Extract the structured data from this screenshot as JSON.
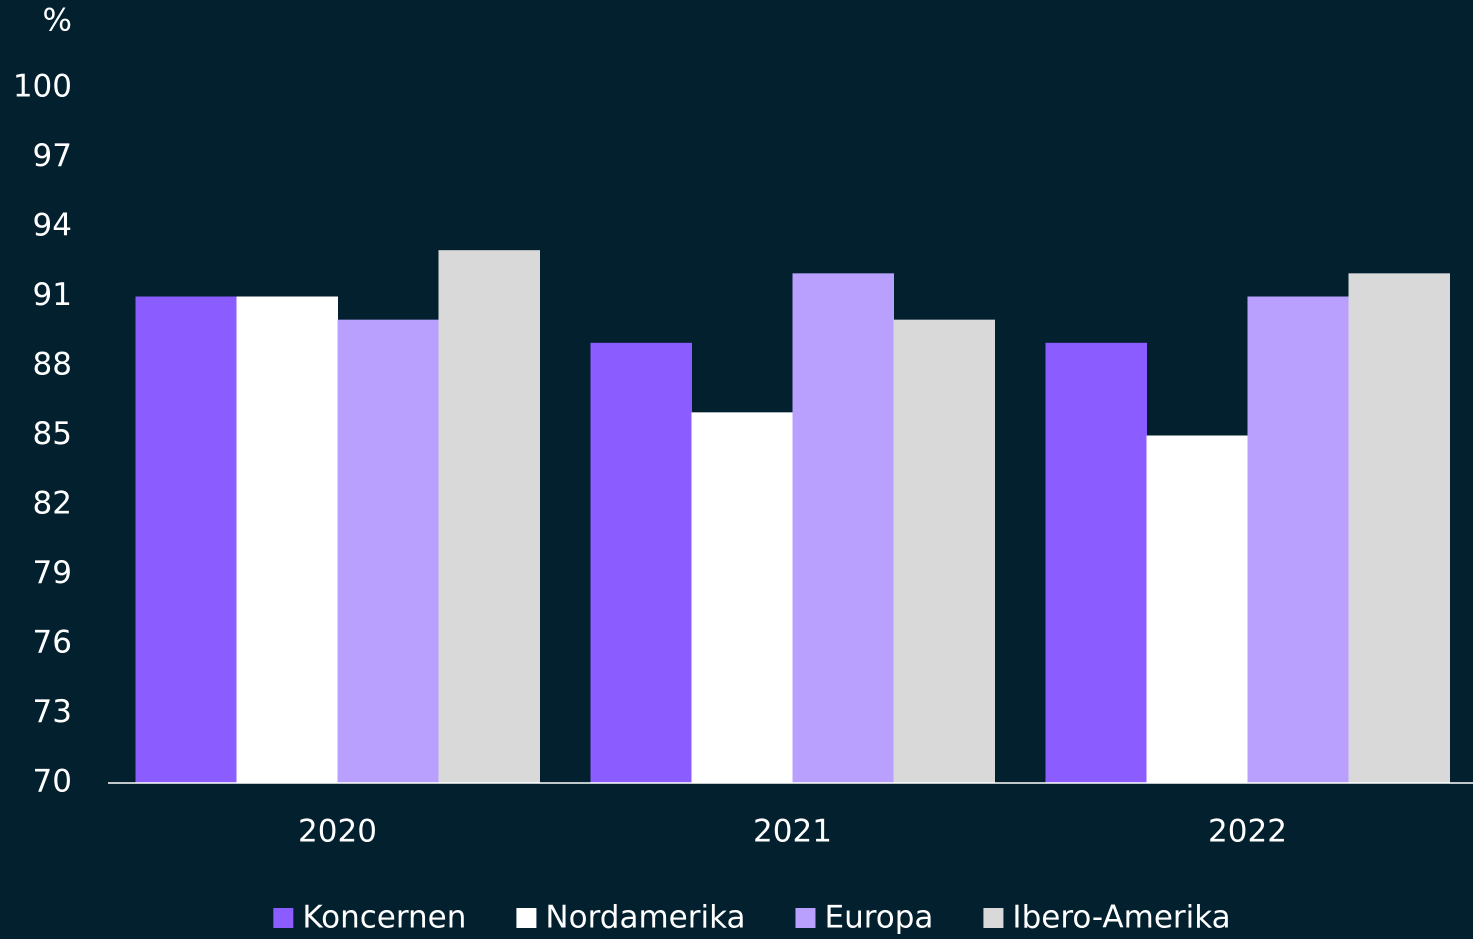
{
  "chart_data": {
    "type": "bar",
    "y_axis_label": "%",
    "categories": [
      "2020",
      "2021",
      "2022"
    ],
    "series": [
      {
        "name": "Koncernen",
        "color": "#8b5cff",
        "values": [
          91,
          89,
          89
        ]
      },
      {
        "name": "Nordamerika",
        "color": "#ffffff",
        "values": [
          91,
          86,
          85
        ]
      },
      {
        "name": "Europa",
        "color": "#b9a0ff",
        "values": [
          90,
          92,
          91
        ]
      },
      {
        "name": "Ibero-Amerika",
        "color": "#d9d9d9",
        "values": [
          93,
          90,
          92
        ]
      }
    ],
    "ylim": [
      70,
      100
    ],
    "yticks": [
      70,
      73,
      76,
      79,
      82,
      85,
      88,
      91,
      94,
      97,
      100
    ],
    "grid": false,
    "legend": "bottom"
  }
}
